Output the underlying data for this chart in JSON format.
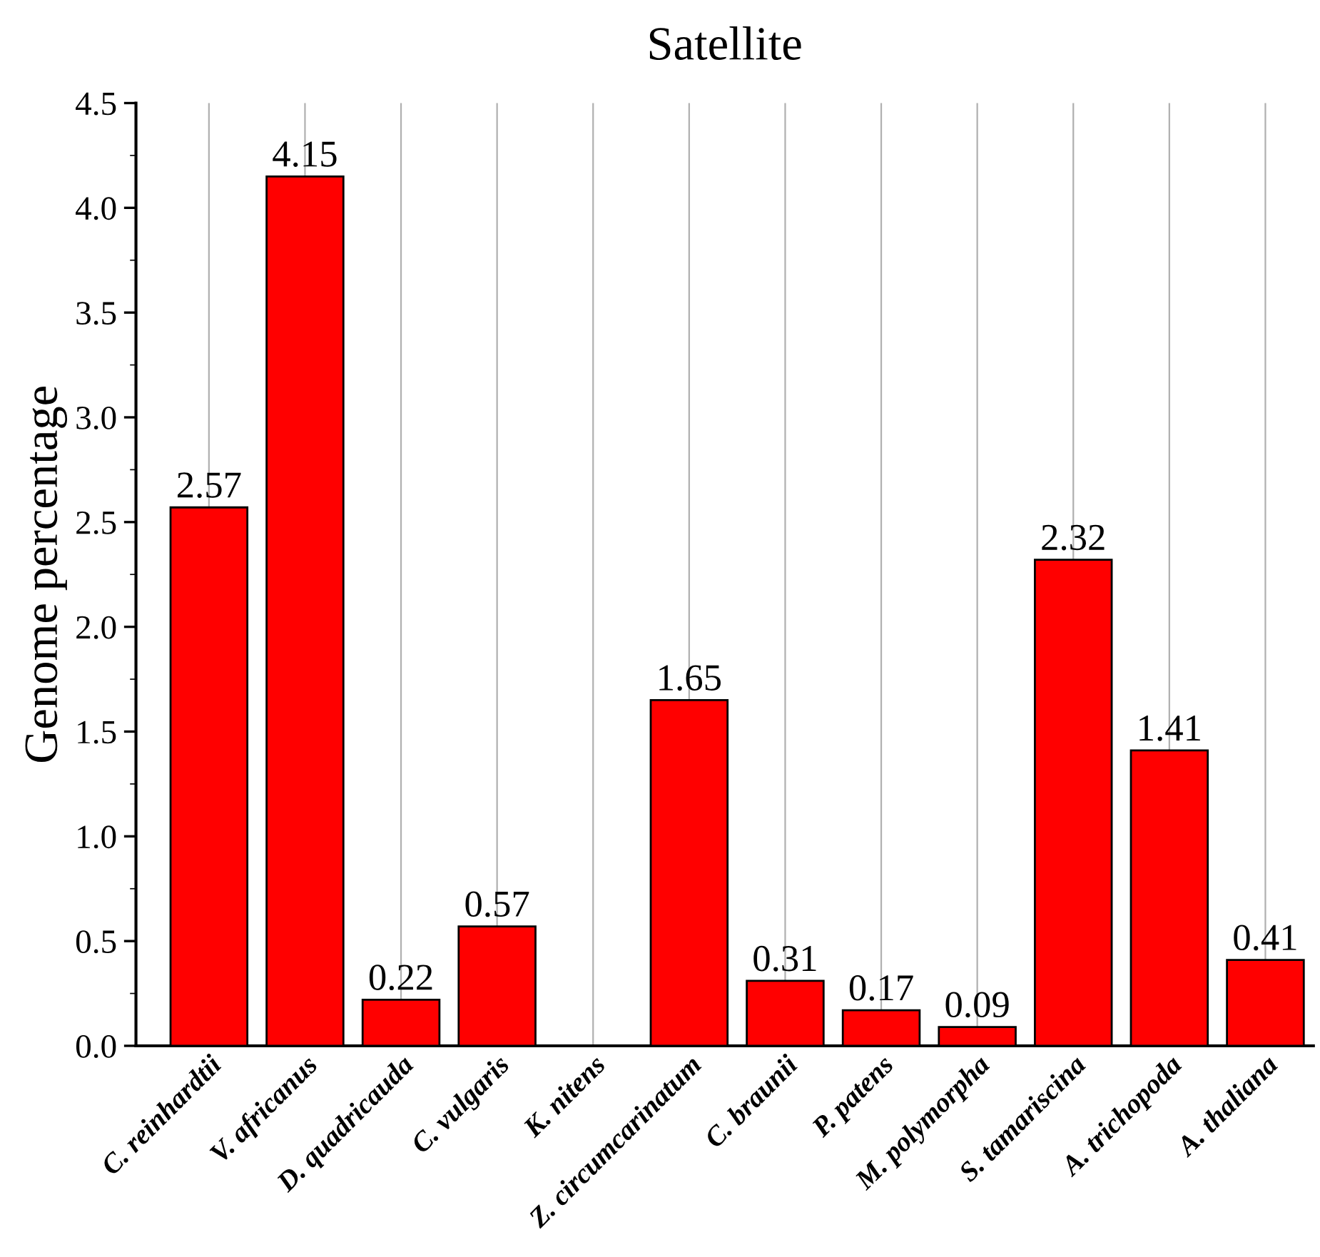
{
  "chart_data": {
    "type": "bar",
    "title": "Satellite",
    "ylabel": "Genome percentage",
    "categories": [
      "C. reinhardtii",
      "V. africanus",
      "D. quadricauda",
      "C. vulgaris",
      "K. nitens",
      "Z. circumcarinatum",
      "C. braunii",
      "P. patens",
      "M. polymorpha",
      "S. tamariscina",
      "A. trichopoda",
      "A. thaliana"
    ],
    "values": [
      2.57,
      4.15,
      0.22,
      0.57,
      null,
      1.65,
      0.31,
      0.17,
      0.09,
      2.32,
      1.41,
      0.41
    ],
    "value_labels": [
      "2.57",
      "4.15",
      "0.22",
      "0.57",
      null,
      "1.65",
      "0.31",
      "0.17",
      "0.09",
      "2.32",
      "1.41",
      "0.41"
    ],
    "color": "#ff0000",
    "ylim": [
      0,
      4.5
    ],
    "yticks": [
      {
        "value": 0,
        "label": "0.0"
      },
      0.5,
      {
        "value": 1,
        "label": "1.0"
      },
      1.5,
      {
        "value": 2,
        "label": "2.0"
      },
      2.5,
      {
        "value": 3,
        "label": "3.0"
      },
      3.5,
      {
        "value": 4,
        "label": "4.0"
      },
      4.5
    ],
    "grid": "x"
  }
}
